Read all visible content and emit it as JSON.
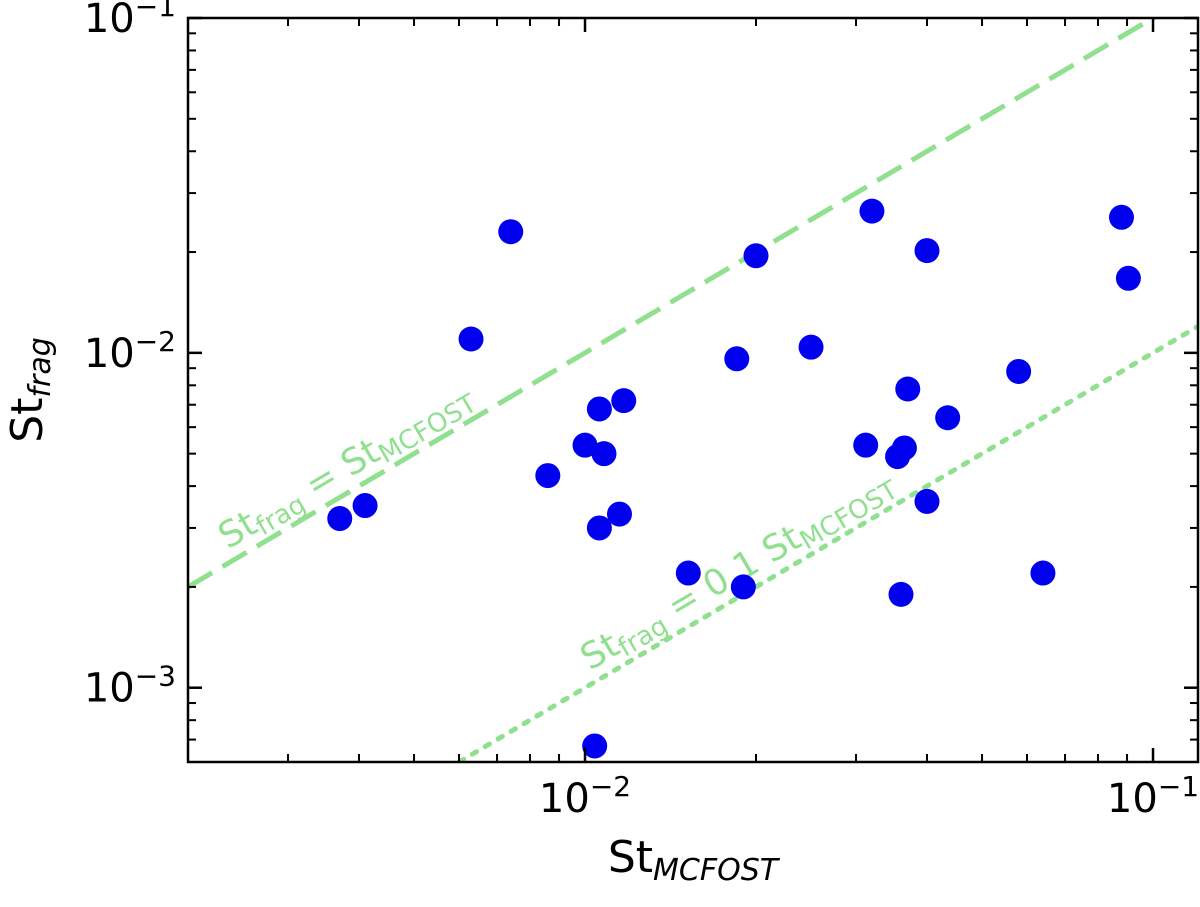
{
  "chart_data": {
    "type": "scatter",
    "xscale": "log",
    "yscale": "log",
    "xlim": [
      0.002,
      0.12
    ],
    "ylim": [
      0.0006,
      0.1
    ],
    "xlabel": {
      "base": "St",
      "sub": "MCFOST"
    },
    "ylabel": {
      "base": "St",
      "sub": "frag"
    },
    "grid": false,
    "x_ticks": [
      {
        "value": 0.01,
        "mant": "10",
        "exp": "−2"
      },
      {
        "value": 0.1,
        "mant": "10",
        "exp": "−1"
      }
    ],
    "y_ticks": [
      {
        "value": 0.001,
        "mant": "10",
        "exp": "−3"
      },
      {
        "value": 0.01,
        "mant": "10",
        "exp": "−2"
      },
      {
        "value": 0.1,
        "mant": "10",
        "exp": "−1"
      }
    ],
    "point_color": "#0000ee",
    "reference_lines": [
      {
        "name": "equality",
        "factor": 1.0,
        "style": "dashed",
        "color": "#90e090",
        "label": {
          "base": "St",
          "sub": "frag",
          "middle": " = St",
          "sub2": "MCFOST"
        }
      },
      {
        "name": "tenth",
        "factor": 0.1,
        "style": "dotted",
        "color": "#90e090",
        "label": {
          "base": "St",
          "sub": "frag",
          "middle": " = 0.1 St",
          "sub2": "MCFOST"
        }
      }
    ],
    "points": [
      {
        "x": 0.0037,
        "y": 0.0032
      },
      {
        "x": 0.0041,
        "y": 0.0035
      },
      {
        "x": 0.0063,
        "y": 0.011
      },
      {
        "x": 0.0074,
        "y": 0.023
      },
      {
        "x": 0.0086,
        "y": 0.0043
      },
      {
        "x": 0.01,
        "y": 0.0053
      },
      {
        "x": 0.0106,
        "y": 0.0068
      },
      {
        "x": 0.0108,
        "y": 0.005
      },
      {
        "x": 0.0106,
        "y": 0.003
      },
      {
        "x": 0.0115,
        "y": 0.0033
      },
      {
        "x": 0.0117,
        "y": 0.0072
      },
      {
        "x": 0.0104,
        "y": 0.00067
      },
      {
        "x": 0.0152,
        "y": 0.0022
      },
      {
        "x": 0.0185,
        "y": 0.0096
      },
      {
        "x": 0.019,
        "y": 0.002
      },
      {
        "x": 0.02,
        "y": 0.0195
      },
      {
        "x": 0.025,
        "y": 0.0104
      },
      {
        "x": 0.0312,
        "y": 0.0053
      },
      {
        "x": 0.032,
        "y": 0.0265
      },
      {
        "x": 0.0355,
        "y": 0.0049
      },
      {
        "x": 0.0365,
        "y": 0.0052
      },
      {
        "x": 0.037,
        "y": 0.0078
      },
      {
        "x": 0.036,
        "y": 0.0019
      },
      {
        "x": 0.04,
        "y": 0.0036
      },
      {
        "x": 0.04,
        "y": 0.0202
      },
      {
        "x": 0.0435,
        "y": 0.0064
      },
      {
        "x": 0.058,
        "y": 0.0088
      },
      {
        "x": 0.064,
        "y": 0.0022
      },
      {
        "x": 0.088,
        "y": 0.0254
      },
      {
        "x": 0.0905,
        "y": 0.0167
      }
    ]
  }
}
